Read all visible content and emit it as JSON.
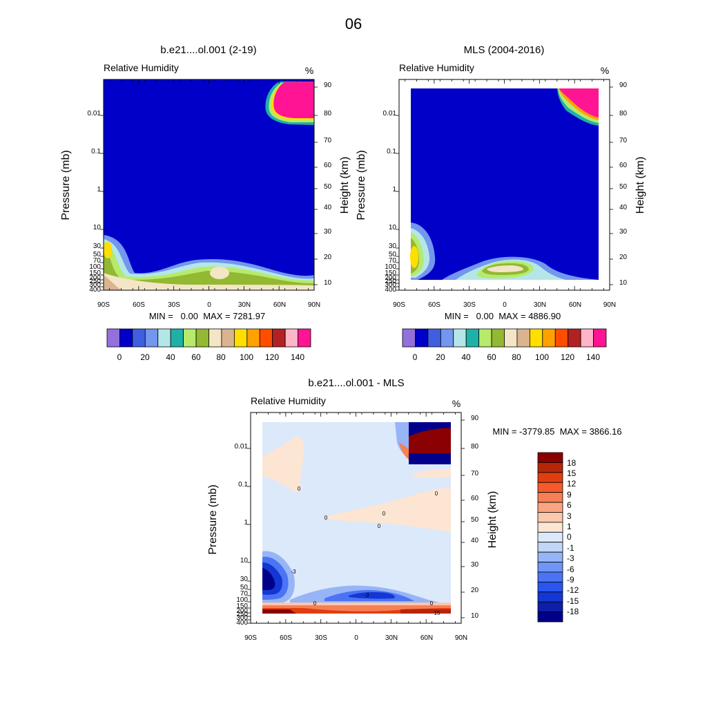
{
  "page_title": "06",
  "colors": {
    "abs_levels": [
      "#9370db",
      "#0000c8",
      "#3f5fe0",
      "#7396ee",
      "#b4e6e8",
      "#1fb0a8",
      "#b6ea6c",
      "#93b831",
      "#f3e5c6",
      "#d9b48f",
      "#ffde00",
      "#ffa100",
      "#ff4d00",
      "#b22222",
      "#ffb4c8",
      "#ff1493"
    ],
    "diff_levels": [
      "#00008b",
      "#0d1ea8",
      "#1437d4",
      "#2b55ef",
      "#4b74f5",
      "#6f95f7",
      "#97b4f6",
      "#c2d6f5",
      "#dbe9fa",
      "#fde5d3",
      "#fbc8ad",
      "#f9a582",
      "#f77f54",
      "#f55a2b",
      "#e03e10",
      "#b8260a",
      "#8b0000"
    ]
  },
  "chart_data": [
    {
      "type": "heatmap",
      "title": "b.e21....ol.001 (2-19)",
      "subtitle": "Relative Humidity",
      "units": "%",
      "ylabel": "Pressure (mb)",
      "ylabel_right": "Height (km)",
      "x_ticks": [
        "90S",
        "60S",
        "30S",
        "0",
        "30N",
        "60N",
        "90N"
      ],
      "y_ticks": [
        "0.01",
        "0.1",
        "1",
        "10",
        "30",
        "50",
        "70",
        "100",
        "150",
        "200",
        "250",
        "300",
        "400"
      ],
      "y_right_ticks": [
        "90",
        "80",
        "70",
        "60",
        "50",
        "40",
        "30",
        "20",
        "10"
      ],
      "stats": "MIN =   0.00  MAX = 7281.97",
      "colorbar_labels": [
        "0",
        "20",
        "40",
        "60",
        "80",
        "100",
        "120",
        "140"
      ],
      "min": 0.0,
      "max": 7281.97
    },
    {
      "type": "heatmap",
      "title": "MLS (2004-2016)",
      "subtitle": "Relative Humidity",
      "units": "%",
      "ylabel": "Pressure (mb)",
      "ylabel_right": "Height (km)",
      "x_ticks": [
        "90S",
        "60S",
        "30S",
        "0",
        "30N",
        "60N",
        "90N"
      ],
      "y_ticks": [
        "0.01",
        "0.1",
        "1",
        "10",
        "30",
        "50",
        "70",
        "100",
        "150",
        "200",
        "250",
        "300",
        "400"
      ],
      "y_right_ticks": [
        "90",
        "80",
        "70",
        "60",
        "50",
        "40",
        "30",
        "20",
        "10"
      ],
      "stats": "MIN =   0.00  MAX = 4886.90",
      "colorbar_labels": [
        "0",
        "20",
        "40",
        "60",
        "80",
        "100",
        "120",
        "140"
      ],
      "min": 0.0,
      "max": 4886.9
    },
    {
      "type": "heatmap",
      "title": "b.e21....ol.001 - MLS",
      "subtitle": "Relative Humidity",
      "units": "%",
      "ylabel": "Pressure (mb)",
      "ylabel_right": "Height (km)",
      "x_ticks": [
        "90S",
        "60S",
        "30S",
        "0",
        "30N",
        "60N",
        "90N"
      ],
      "y_ticks": [
        "0.01",
        "0.1",
        "1",
        "10",
        "30",
        "50",
        "70",
        "100",
        "150",
        "200",
        "250",
        "300",
        "400"
      ],
      "y_right_ticks": [
        "90",
        "80",
        "70",
        "60",
        "50",
        "40",
        "30",
        "20",
        "10"
      ],
      "stats": "MIN = -3779.85  MAX = 3866.16",
      "colorbar_labels": [
        "18",
        "15",
        "12",
        "9",
        "6",
        "3",
        "1",
        "0",
        "-1",
        "-3",
        "-6",
        "-9",
        "-12",
        "-15",
        "-18"
      ],
      "contour_labels": [
        "0",
        "0",
        "0",
        "0",
        "-3",
        "-3",
        "0",
        "0",
        "0",
        "15"
      ],
      "min": -3779.85,
      "max": 3866.16
    }
  ]
}
